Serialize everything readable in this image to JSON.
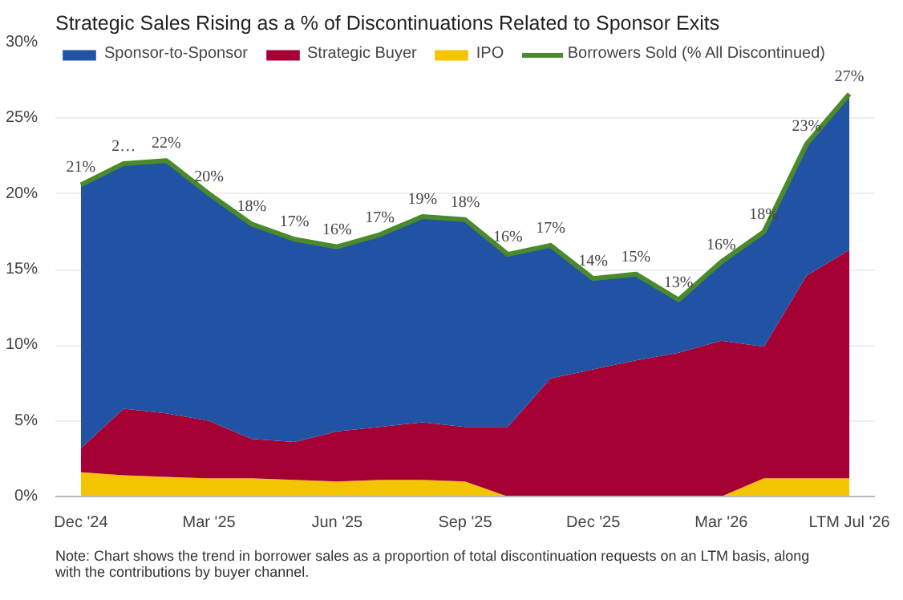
{
  "chart_data": {
    "type": "area",
    "title": "Strategic Sales Rising as a % of Discontinuations Related to Sponsor Exits",
    "categories": [
      "Dec '24",
      null,
      null,
      "Mar '25",
      null,
      null,
      "Jun '25",
      null,
      null,
      "Sep '25",
      null,
      null,
      "Dec '25",
      null,
      null,
      "Mar '26",
      null,
      null,
      "LTM Jul '26"
    ],
    "stacked": true,
    "series": [
      {
        "name": "IPO",
        "color": "#f5c400",
        "values": [
          1.6,
          1.4,
          1.3,
          1.2,
          1.2,
          1.1,
          1.0,
          1.1,
          1.1,
          1.0,
          0,
          0,
          0,
          0,
          0,
          0,
          1.2,
          1.2,
          1.2
        ]
      },
      {
        "name": "Strategic Buyer",
        "color": "#a50034",
        "values": [
          1.6,
          4.4,
          4.2,
          3.8,
          2.6,
          2.5,
          3.3,
          3.5,
          3.8,
          3.6,
          4.6,
          7.8,
          8.4,
          9.0,
          9.5,
          10.3,
          8.7,
          13.4,
          15.1
        ]
      },
      {
        "name": "Sponsor-to-Sponsor",
        "color": "#2152a3",
        "values": [
          17.4,
          16.2,
          16.7,
          15.0,
          14.2,
          13.4,
          12.2,
          12.7,
          13.5,
          13.7,
          11.4,
          8.8,
          6.0,
          5.7,
          3.5,
          5.2,
          7.5,
          8.7,
          10.3
        ]
      },
      {
        "name": "Borrowers Sold (% All Discontinued)",
        "type": "line",
        "color": "#4a8a2a",
        "values": [
          20.6,
          22.0,
          22.2,
          20.0,
          18.0,
          17.0,
          16.5,
          17.3,
          18.5,
          18.3,
          16.0,
          16.6,
          14.4,
          14.7,
          13.0,
          15.5,
          17.5,
          23.3,
          26.6
        ],
        "value_labels": [
          "21%",
          "2…",
          "22%",
          "20%",
          "18%",
          "17%",
          "16%",
          "17%",
          "19%",
          "18%",
          "16%",
          "17%",
          "14%",
          "15%",
          "13%",
          "16%",
          "18%",
          "23%",
          "27%"
        ]
      }
    ],
    "ylim": [
      0,
      30
    ],
    "yticks": [
      {
        "value": 0,
        "label": "0%"
      },
      {
        "value": 5,
        "label": "5%"
      },
      {
        "value": 10,
        "label": "10%"
      },
      {
        "value": 15,
        "label": "15%"
      },
      {
        "value": 20,
        "label": "20%"
      },
      {
        "value": 25,
        "label": "25%"
      },
      {
        "value": 30,
        "label": "30%"
      }
    ],
    "grid": "y",
    "legend": "top",
    "annotations": [
      "Note: Chart shows the trend in borrower sales as a proportion of total discontinuation requests on an LTM basis, along with the contributions by buyer channel."
    ]
  }
}
